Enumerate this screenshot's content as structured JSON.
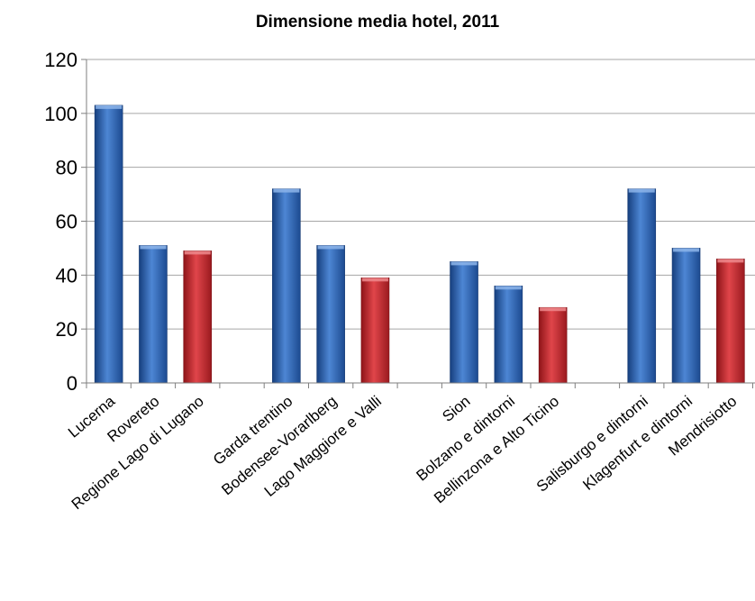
{
  "chart_data": {
    "type": "bar",
    "title": "Dimensione media hotel, 2011",
    "categories": [
      "Lucerna",
      "Rovereto",
      "Regione Lago di Lugano",
      "",
      "Garda trentino",
      "Bodensee-Vorarlberg",
      "Lago Maggiore e Valli",
      "",
      "Sion",
      "Bolzano e dintorni",
      "Bellinzona e Alto Ticino",
      "",
      "Salisburgo e dintorni",
      "Klagenfurt e dintorni",
      "Mendrisiotto"
    ],
    "values": [
      103,
      51,
      49,
      null,
      72,
      51,
      39,
      null,
      45,
      36,
      28,
      null,
      72,
      50,
      46
    ],
    "highlight": [
      false,
      false,
      true,
      false,
      false,
      false,
      true,
      false,
      false,
      false,
      true,
      false,
      false,
      false,
      true
    ],
    "colors": {
      "primary": "#2f64b4",
      "highlight": "#c0272d",
      "grid": "#a6a6a6"
    },
    "ylim": [
      0,
      120
    ],
    "yticks": [
      0,
      20,
      40,
      60,
      80,
      100,
      120
    ],
    "grid": true,
    "xlabel": "",
    "ylabel": ""
  }
}
